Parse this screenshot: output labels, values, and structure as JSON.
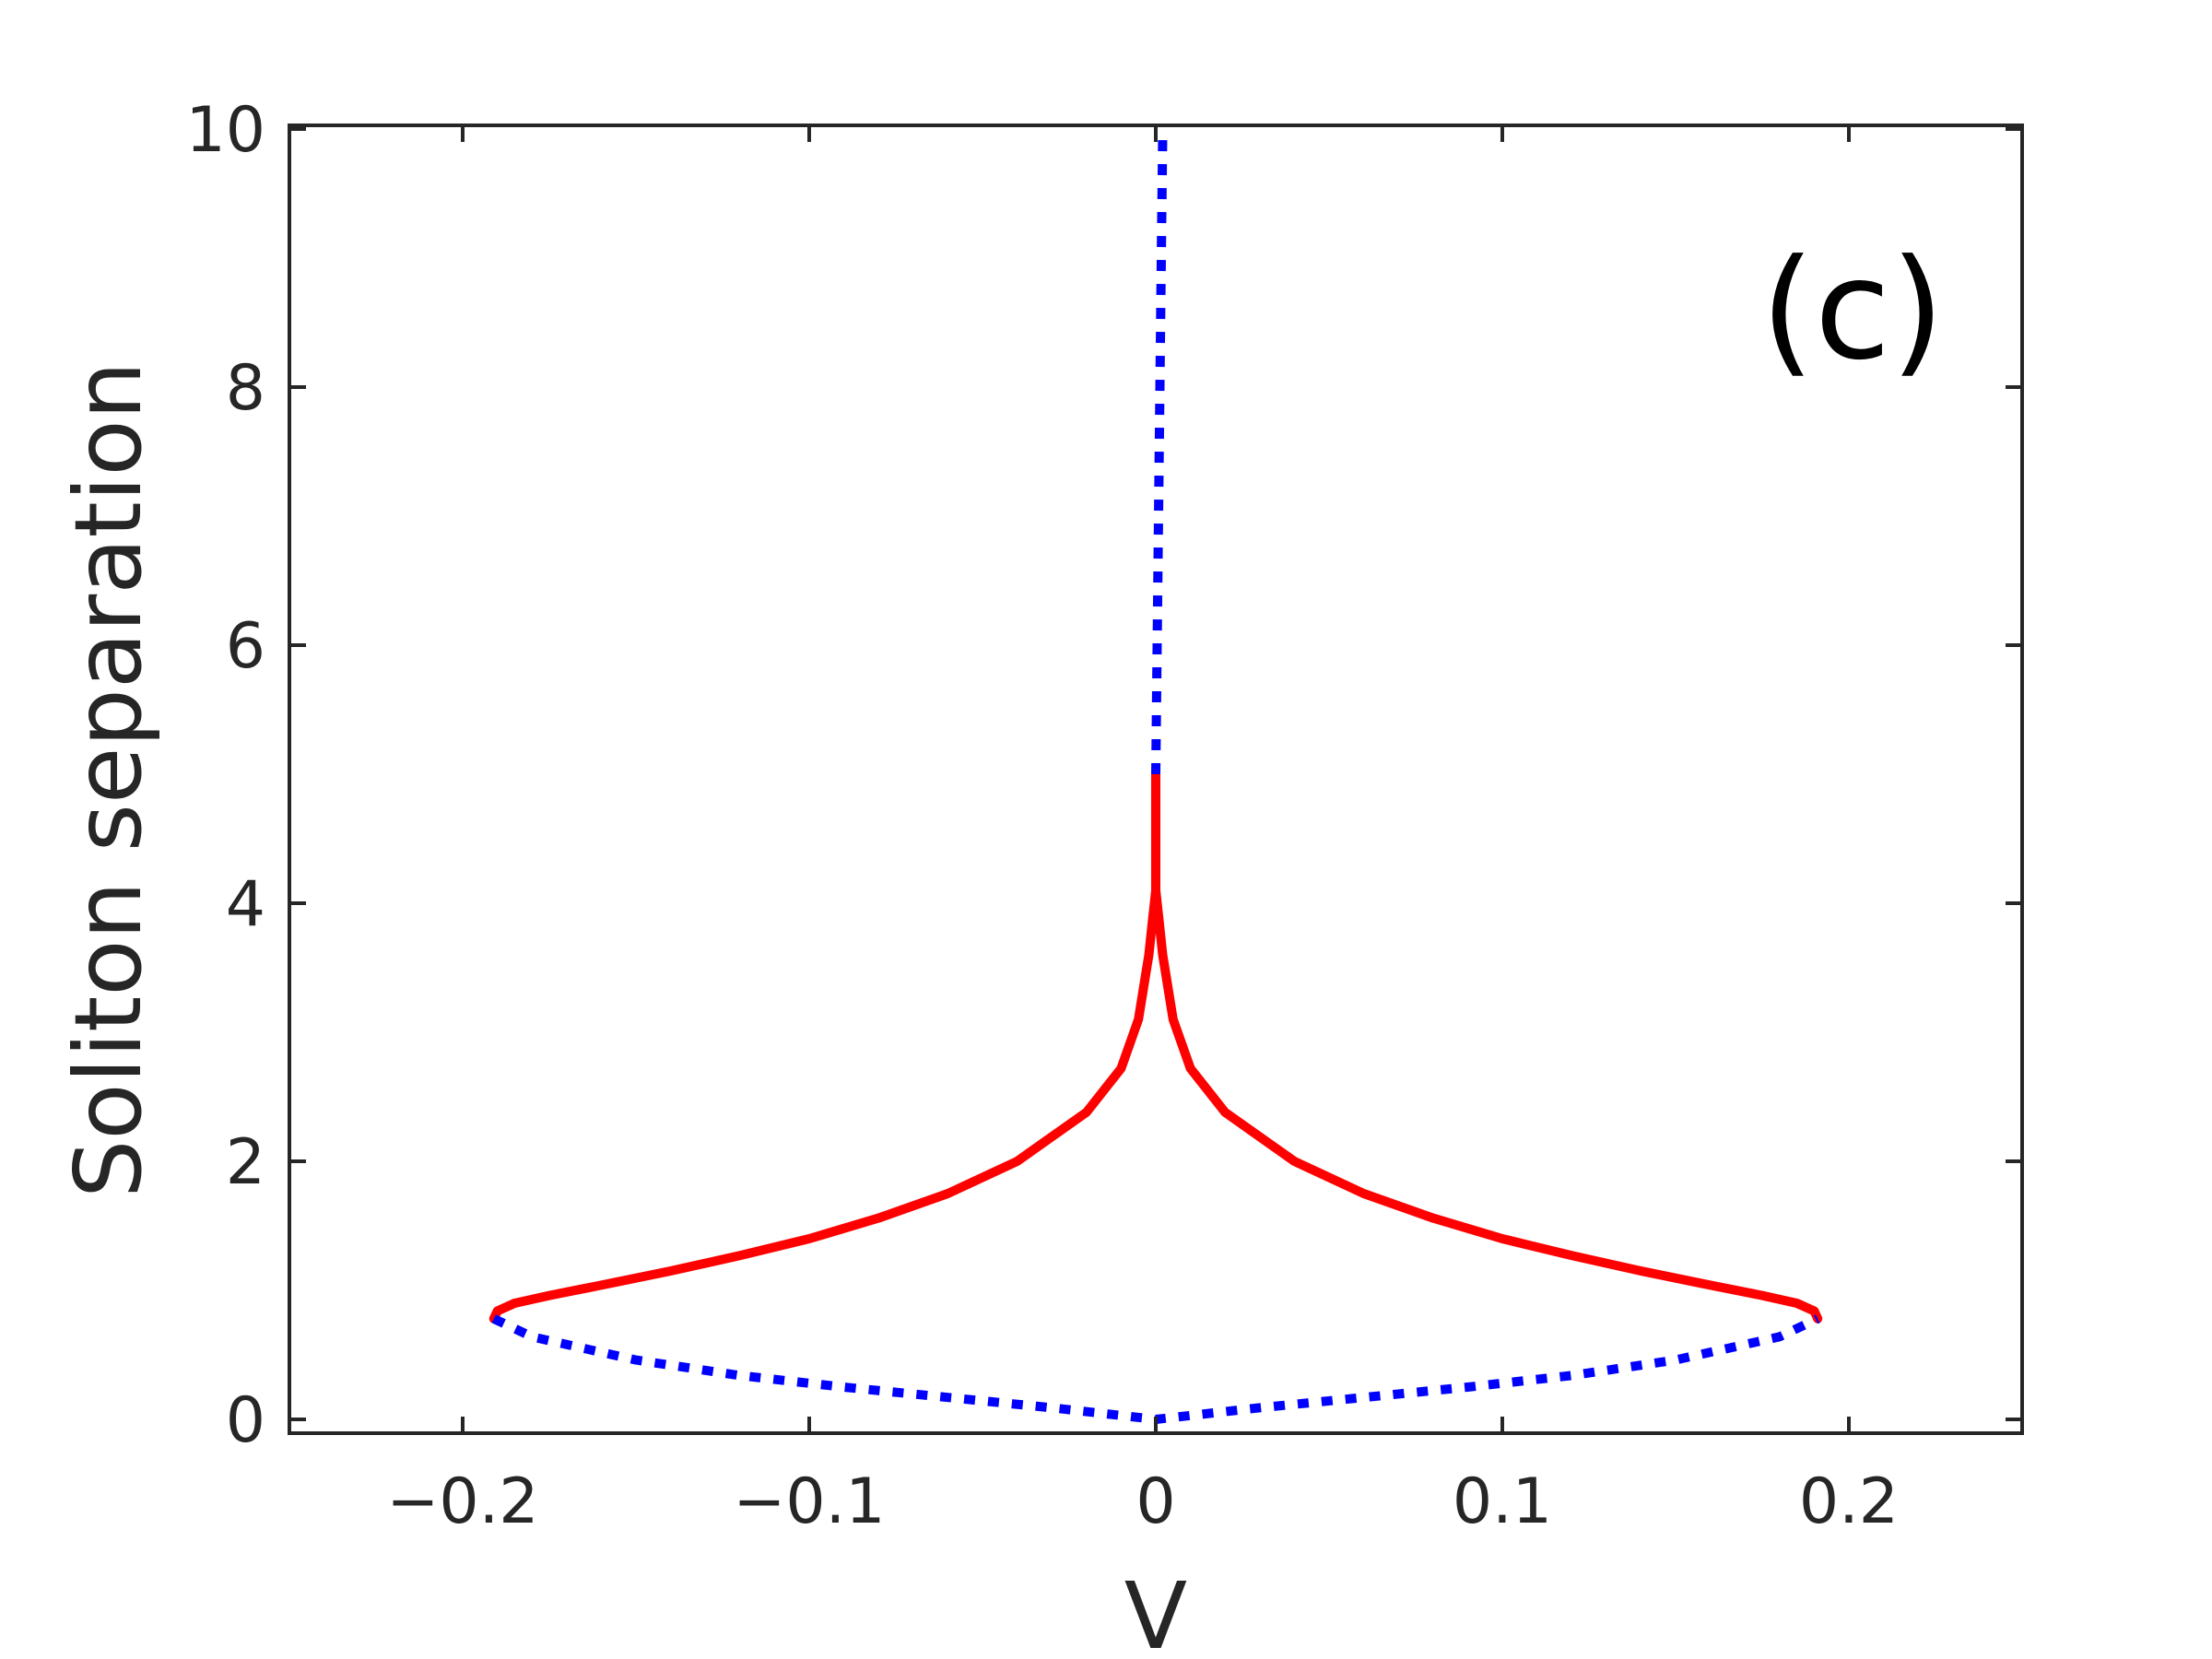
{
  "chart_data": {
    "type": "line",
    "title": "",
    "panel_label": "(c)",
    "xlabel": "V",
    "ylabel": "Soliton separation",
    "xlim": [
      -0.25,
      0.25
    ],
    "ylim": [
      -0.05,
      10
    ],
    "xticks": [
      -0.2,
      -0.1,
      0,
      0.1,
      0.2
    ],
    "xtick_labels": [
      "−0.2",
      "−0.1",
      "0",
      "0.1",
      "0.2"
    ],
    "yticks": [
      0,
      2,
      4,
      6,
      8,
      10
    ],
    "ytick_labels": [
      "0",
      "2",
      "4",
      "6",
      "8",
      "10"
    ],
    "grid": false,
    "legend": "none",
    "series": [
      {
        "style": "solid",
        "color": "#ff0000",
        "points": [
          [
            -0.191,
            0.78
          ],
          [
            -0.19,
            0.84
          ],
          [
            -0.185,
            0.9
          ],
          [
            -0.175,
            0.96
          ],
          [
            -0.16,
            1.04
          ],
          [
            -0.14,
            1.15
          ],
          [
            -0.12,
            1.27
          ],
          [
            -0.1,
            1.4
          ],
          [
            -0.08,
            1.56
          ],
          [
            -0.06,
            1.75
          ],
          [
            -0.04,
            2.0
          ],
          [
            -0.02,
            2.38
          ],
          [
            -0.01,
            2.72
          ],
          [
            -0.005,
            3.1
          ],
          [
            -0.002,
            3.6
          ],
          [
            -0.001,
            3.85
          ],
          [
            0.0,
            4.1
          ],
          [
            0.0,
            5.0
          ]
        ]
      },
      {
        "style": "solid",
        "color": "#ff0000",
        "points": [
          [
            0.0,
            4.1
          ],
          [
            0.001,
            3.85
          ],
          [
            0.002,
            3.6
          ],
          [
            0.005,
            3.1
          ],
          [
            0.01,
            2.72
          ],
          [
            0.02,
            2.38
          ],
          [
            0.04,
            2.0
          ],
          [
            0.06,
            1.75
          ],
          [
            0.08,
            1.56
          ],
          [
            0.1,
            1.4
          ],
          [
            0.12,
            1.27
          ],
          [
            0.14,
            1.15
          ],
          [
            0.16,
            1.04
          ],
          [
            0.175,
            0.96
          ],
          [
            0.185,
            0.9
          ],
          [
            0.19,
            0.84
          ],
          [
            0.191,
            0.78
          ]
        ]
      },
      {
        "style": "dotted",
        "color": "#0000ff",
        "points": [
          [
            0.0,
            5.0
          ],
          [
            0.0004,
            6.0
          ],
          [
            0.0008,
            7.0
          ],
          [
            0.0012,
            8.0
          ],
          [
            0.0016,
            9.0
          ],
          [
            0.002,
            9.95
          ]
        ]
      },
      {
        "style": "dotted",
        "color": "#0000ff",
        "points": [
          [
            -0.191,
            0.78
          ],
          [
            -0.18,
            0.64
          ],
          [
            -0.15,
            0.46
          ],
          [
            -0.12,
            0.34
          ],
          [
            -0.09,
            0.25
          ],
          [
            -0.06,
            0.17
          ],
          [
            -0.03,
            0.09
          ],
          [
            0.0,
            0.0
          ],
          [
            0.03,
            0.09
          ],
          [
            0.06,
            0.17
          ],
          [
            0.09,
            0.25
          ],
          [
            0.12,
            0.34
          ],
          [
            0.15,
            0.46
          ],
          [
            0.18,
            0.64
          ],
          [
            0.191,
            0.78
          ]
        ]
      }
    ]
  }
}
